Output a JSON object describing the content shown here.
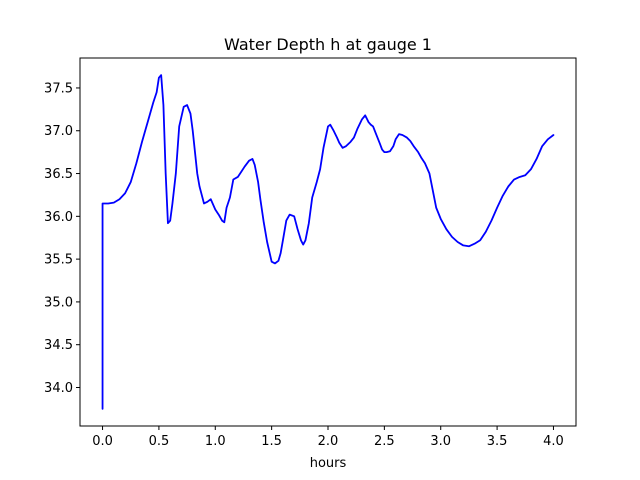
{
  "chart_data": {
    "type": "line",
    "title": "Water Depth h at gauge 1",
    "xlabel": "hours",
    "ylabel": "",
    "xlim": [
      -0.2,
      4.2
    ],
    "ylim": [
      33.55,
      37.85
    ],
    "grid": false,
    "xticks": [
      0.0,
      0.5,
      1.0,
      1.5,
      2.0,
      2.5,
      3.0,
      3.5,
      4.0
    ],
    "xtick_labels": [
      "0.0",
      "0.5",
      "1.0",
      "1.5",
      "2.0",
      "2.5",
      "3.0",
      "3.5",
      "4.0"
    ],
    "yticks": [
      34.0,
      34.5,
      35.0,
      35.5,
      36.0,
      36.5,
      37.0,
      37.5
    ],
    "ytick_labels": [
      "34.0",
      "34.5",
      "35.0",
      "35.5",
      "36.0",
      "36.5",
      "37.0",
      "37.5"
    ],
    "series": [
      {
        "color": "#0000ff",
        "x": [
          0.0,
          0.0,
          0.05,
          0.1,
          0.15,
          0.2,
          0.25,
          0.3,
          0.35,
          0.4,
          0.45,
          0.48,
          0.5,
          0.52,
          0.54,
          0.56,
          0.58,
          0.6,
          0.62,
          0.65,
          0.68,
          0.72,
          0.75,
          0.78,
          0.8,
          0.82,
          0.84,
          0.86,
          0.88,
          0.9,
          0.93,
          0.96,
          1.0,
          1.03,
          1.06,
          1.08,
          1.1,
          1.13,
          1.16,
          1.2,
          1.23,
          1.26,
          1.3,
          1.33,
          1.35,
          1.38,
          1.4,
          1.43,
          1.46,
          1.5,
          1.53,
          1.56,
          1.58,
          1.6,
          1.63,
          1.66,
          1.7,
          1.73,
          1.76,
          1.78,
          1.8,
          1.83,
          1.86,
          1.9,
          1.93,
          1.96,
          2.0,
          2.02,
          2.05,
          2.08,
          2.1,
          2.13,
          2.16,
          2.2,
          2.23,
          2.26,
          2.3,
          2.33,
          2.36,
          2.38,
          2.4,
          2.43,
          2.46,
          2.48,
          2.5,
          2.52,
          2.55,
          2.58,
          2.6,
          2.63,
          2.66,
          2.7,
          2.73,
          2.76,
          2.8,
          2.83,
          2.86,
          2.9,
          2.93,
          2.96,
          3.0,
          3.05,
          3.1,
          3.15,
          3.2,
          3.25,
          3.3,
          3.35,
          3.4,
          3.45,
          3.5,
          3.55,
          3.6,
          3.65,
          3.7,
          3.75,
          3.8,
          3.85,
          3.9,
          3.95,
          4.0
        ],
        "values": [
          33.75,
          36.15,
          36.15,
          36.16,
          36.2,
          36.27,
          36.4,
          36.62,
          36.87,
          37.1,
          37.33,
          37.45,
          37.62,
          37.65,
          37.3,
          36.5,
          35.92,
          35.95,
          36.15,
          36.5,
          37.05,
          37.28,
          37.3,
          37.2,
          37.0,
          36.75,
          36.5,
          36.35,
          36.25,
          36.15,
          36.17,
          36.2,
          36.08,
          36.02,
          35.95,
          35.93,
          36.1,
          36.22,
          36.43,
          36.46,
          36.52,
          36.58,
          36.65,
          36.67,
          36.6,
          36.4,
          36.2,
          35.93,
          35.7,
          35.47,
          35.45,
          35.48,
          35.57,
          35.72,
          35.95,
          36.02,
          36.0,
          35.85,
          35.72,
          35.67,
          35.72,
          35.92,
          36.22,
          36.4,
          36.55,
          36.8,
          37.05,
          37.07,
          37.0,
          36.92,
          36.86,
          36.8,
          36.82,
          36.87,
          36.92,
          37.02,
          37.13,
          37.18,
          37.1,
          37.07,
          37.05,
          36.95,
          36.85,
          36.78,
          36.75,
          36.75,
          36.76,
          36.82,
          36.9,
          36.96,
          36.95,
          36.92,
          36.88,
          36.82,
          36.75,
          36.68,
          36.62,
          36.5,
          36.3,
          36.1,
          35.97,
          35.85,
          35.76,
          35.7,
          35.66,
          35.65,
          35.68,
          35.72,
          35.82,
          35.95,
          36.1,
          36.24,
          36.35,
          36.43,
          36.46,
          36.48,
          36.55,
          36.67,
          36.82,
          36.9,
          36.95
        ]
      }
    ]
  }
}
